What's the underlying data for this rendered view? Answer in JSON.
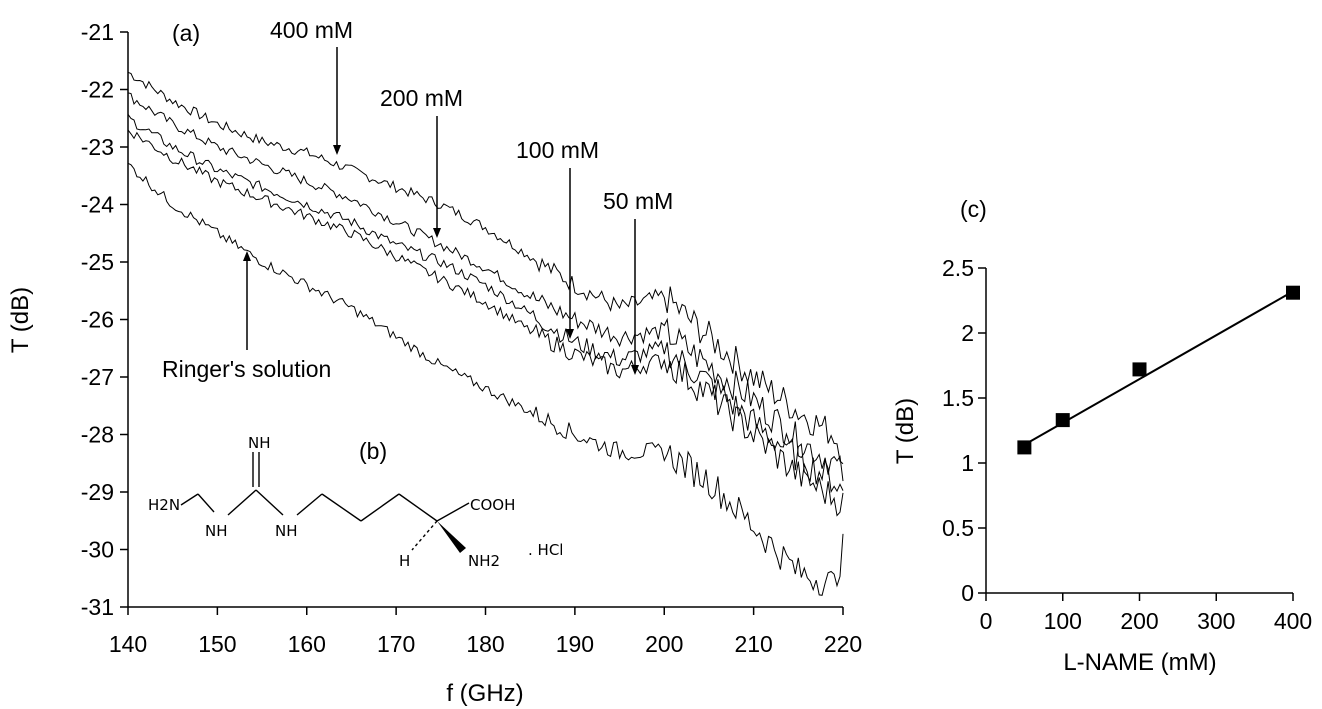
{
  "chart_data": [
    {
      "panel_label": "(a)",
      "type": "line",
      "xlabel": "f (GHz)",
      "ylabel": "T (dB)",
      "xlim": [
        140,
        220
      ],
      "ylim": [
        -31,
        -21
      ],
      "xticks": [
        140,
        150,
        160,
        170,
        180,
        190,
        200,
        210,
        220
      ],
      "yticks": [
        -21,
        -22,
        -23,
        -24,
        -25,
        -26,
        -27,
        -28,
        -29,
        -30,
        -31
      ],
      "grid": false,
      "legend": "none",
      "series": [
        {
          "name": "400 mM",
          "x": [
            140,
            145,
            150,
            155,
            160,
            165,
            170,
            175,
            180,
            185,
            190,
            195,
            200,
            205,
            210,
            215,
            219,
            220
          ],
          "y": [
            -21.7,
            -22.2,
            -22.6,
            -22.9,
            -23.1,
            -23.4,
            -23.7,
            -24.0,
            -24.4,
            -24.9,
            -25.4,
            -25.8,
            -25.6,
            -26.3,
            -27.0,
            -27.6,
            -28.0,
            -28.3
          ]
        },
        {
          "name": "200 mM",
          "x": [
            140,
            145,
            150,
            155,
            160,
            165,
            170,
            175,
            180,
            185,
            190,
            195,
            200,
            205,
            210,
            215,
            219,
            220
          ],
          "y": [
            -22.1,
            -22.6,
            -23.0,
            -23.3,
            -23.6,
            -23.9,
            -24.3,
            -24.7,
            -25.1,
            -25.6,
            -26.0,
            -26.3,
            -26.2,
            -26.8,
            -27.4,
            -28.1,
            -28.5,
            -28.7
          ]
        },
        {
          "name": "100 mM",
          "x": [
            140,
            145,
            150,
            155,
            160,
            165,
            170,
            175,
            180,
            185,
            190,
            195,
            200,
            205,
            210,
            215,
            219,
            220
          ],
          "y": [
            -22.5,
            -23.0,
            -23.4,
            -23.7,
            -24.0,
            -24.3,
            -24.7,
            -25.0,
            -25.4,
            -25.9,
            -26.4,
            -26.7,
            -26.5,
            -27.1,
            -27.8,
            -28.4,
            -28.8,
            -29.0
          ]
        },
        {
          "name": "50 mM",
          "x": [
            140,
            145,
            150,
            155,
            160,
            165,
            170,
            175,
            180,
            185,
            190,
            195,
            200,
            205,
            210,
            215,
            219,
            220
          ],
          "y": [
            -22.7,
            -23.2,
            -23.6,
            -23.9,
            -24.2,
            -24.5,
            -24.9,
            -25.3,
            -25.7,
            -26.2,
            -26.6,
            -26.9,
            -26.7,
            -27.3,
            -28.0,
            -28.7,
            -29.1,
            -29.2
          ]
        },
        {
          "name": "Ringer's solution",
          "x": [
            140,
            145,
            150,
            155,
            160,
            165,
            170,
            175,
            180,
            185,
            190,
            195,
            200,
            205,
            210,
            215,
            219,
            220
          ],
          "y": [
            -23.3,
            -24.0,
            -24.5,
            -25.0,
            -25.4,
            -25.8,
            -26.3,
            -26.8,
            -27.2,
            -27.6,
            -28.0,
            -28.3,
            -28.3,
            -28.8,
            -29.6,
            -30.4,
            -30.6,
            -30.0
          ]
        }
      ],
      "annotations": [
        "400 mM",
        "200 mM",
        "100 mM",
        "50 mM",
        "Ringer's solution"
      ]
    },
    {
      "panel_label": "(c)",
      "type": "scatter",
      "xlabel": "L-NAME (mM)",
      "ylabel": "T (dB)",
      "xlim": [
        0,
        400
      ],
      "ylim": [
        0,
        2.5
      ],
      "xticks": [
        0,
        100,
        200,
        300,
        400
      ],
      "yticks": [
        "0",
        "0.5",
        "1",
        "1.5",
        "2",
        "2.5"
      ],
      "grid": false,
      "legend": "none",
      "points": {
        "x": [
          50,
          100,
          200,
          400
        ],
        "y": [
          1.12,
          1.33,
          1.72,
          2.31
        ]
      },
      "fit_line": {
        "x": [
          50,
          400
        ],
        "y": [
          1.14,
          2.32
        ]
      }
    }
  ],
  "structure": {
    "panel_label": "(b)",
    "labels": [
      "NH",
      "H2N",
      "NH",
      "NH",
      "COOH",
      "H",
      "NH2",
      ". HCl"
    ]
  }
}
